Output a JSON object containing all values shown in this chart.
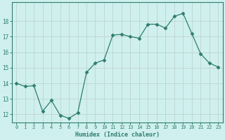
{
  "x": [
    0,
    1,
    2,
    3,
    4,
    5,
    6,
    7,
    8,
    9,
    10,
    11,
    12,
    13,
    14,
    15,
    16,
    17,
    18,
    19,
    20,
    21,
    22,
    23
  ],
  "y": [
    14.0,
    13.8,
    13.85,
    12.2,
    12.9,
    11.95,
    11.75,
    12.1,
    14.7,
    15.3,
    15.5,
    17.1,
    17.15,
    17.0,
    16.9,
    17.8,
    17.8,
    17.55,
    18.3,
    18.5,
    17.2,
    15.9,
    15.3,
    15.05
  ],
  "line_color": "#2e7d6e",
  "marker": "D",
  "marker_size": 2.5,
  "bg_color": "#cff0ee",
  "grid_color": "#c0d8d5",
  "tick_color": "#2e7d6e",
  "label_color": "#2e7d6e",
  "xlabel": "Humidex (Indice chaleur)",
  "ylim": [
    11.5,
    19.2
  ],
  "yticks": [
    12,
    13,
    14,
    15,
    16,
    17,
    18
  ],
  "xticks": [
    0,
    1,
    2,
    3,
    4,
    5,
    6,
    7,
    8,
    9,
    10,
    11,
    12,
    13,
    14,
    15,
    16,
    17,
    18,
    19,
    20,
    21,
    22,
    23
  ]
}
